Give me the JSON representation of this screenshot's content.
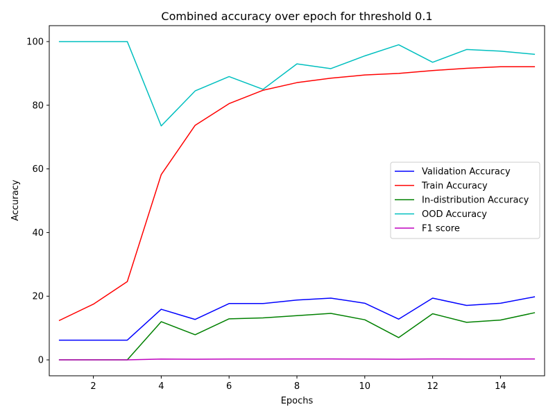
{
  "chart_data": {
    "type": "line",
    "title": "Combined accuracy over epoch for threshold 0.1",
    "xlabel": "Epochs",
    "ylabel": "Accuracy",
    "xlim": [
      0.7,
      15.3
    ],
    "ylim": [
      -5,
      105
    ],
    "xticks": [
      2,
      4,
      6,
      8,
      10,
      12,
      14
    ],
    "yticks": [
      0,
      20,
      40,
      60,
      80,
      100
    ],
    "grid": false,
    "legend_position": "center-right",
    "x": [
      1,
      2,
      3,
      4,
      5,
      6,
      7,
      8,
      9,
      10,
      11,
      12,
      13,
      14,
      15
    ],
    "series": [
      {
        "name": "Validation Accuracy",
        "color": "#0000ff",
        "values": [
          6.2,
          6.2,
          6.2,
          15.9,
          12.7,
          17.7,
          17.7,
          18.8,
          19.4,
          17.8,
          12.8,
          19.4,
          17.1,
          17.8,
          19.8
        ]
      },
      {
        "name": "Train Accuracy",
        "color": "#ff0000",
        "values": [
          12.4,
          17.5,
          24.6,
          58.2,
          73.7,
          80.5,
          84.7,
          87.1,
          88.5,
          89.5,
          90.0,
          90.9,
          91.6,
          92.1,
          92.1
        ]
      },
      {
        "name": "In-distribution Accuracy",
        "color": "#008000",
        "values": [
          0.0,
          0.0,
          0.0,
          12.0,
          7.9,
          12.9,
          13.2,
          13.9,
          14.6,
          12.6,
          7.0,
          14.5,
          11.8,
          12.5,
          14.8
        ]
      },
      {
        "name": "OOD Accuracy",
        "color": "#00bfbf",
        "values": [
          100.0,
          100.0,
          100.0,
          73.5,
          84.5,
          89.0,
          85.0,
          93.0,
          91.5,
          95.5,
          99.0,
          93.5,
          97.5,
          97.0,
          96.0
        ]
      },
      {
        "name": "F1 score",
        "color": "#bf00bf",
        "values": [
          0.0,
          0.0,
          0.0,
          0.25,
          0.2,
          0.25,
          0.25,
          0.27,
          0.28,
          0.25,
          0.2,
          0.28,
          0.25,
          0.25,
          0.28
        ]
      }
    ]
  }
}
